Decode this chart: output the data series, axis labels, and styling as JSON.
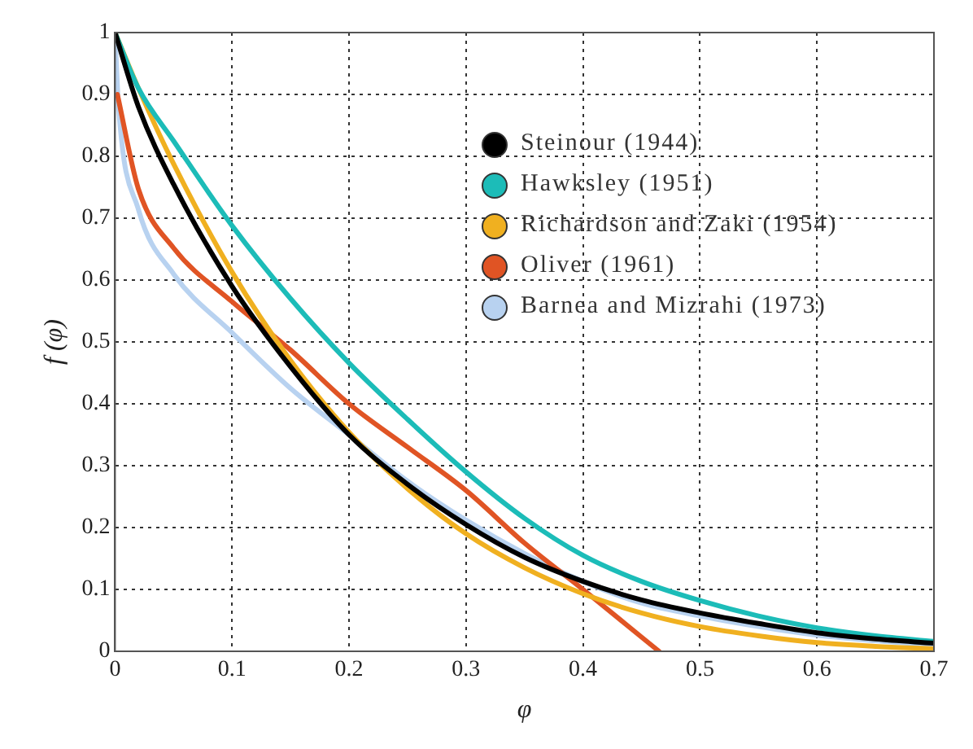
{
  "chart_data": {
    "type": "line",
    "xlabel": "φ",
    "ylabel": "f (φ)",
    "xlim": [
      0,
      0.7
    ],
    "ylim": [
      0,
      1
    ],
    "xticks": [
      0,
      0.1,
      0.2,
      0.3,
      0.4,
      0.5,
      0.6,
      0.7
    ],
    "yticks": [
      0,
      0.1,
      0.2,
      0.3,
      0.4,
      0.5,
      0.6,
      0.7,
      0.8,
      0.9,
      1
    ],
    "grid": true,
    "legend": "top",
    "marker": "none",
    "line_style": "solid",
    "series": [
      {
        "name": "Steinour (1944)",
        "color": "#000000",
        "x": [
          0,
          0.02,
          0.05,
          0.1,
          0.15,
          0.2,
          0.25,
          0.3,
          0.35,
          0.4,
          0.45,
          0.5,
          0.55,
          0.6,
          0.65,
          0.7
        ],
        "values": [
          1,
          0.88,
          0.755,
          0.59,
          0.46,
          0.35,
          0.27,
          0.205,
          0.152,
          0.113,
          0.083,
          0.062,
          0.045,
          0.03,
          0.02,
          0.013
        ]
      },
      {
        "name": "Hawksley (1951)",
        "color": "#1cbcb8",
        "x": [
          0,
          0.02,
          0.05,
          0.1,
          0.15,
          0.2,
          0.25,
          0.3,
          0.35,
          0.4,
          0.45,
          0.5,
          0.55,
          0.6,
          0.65,
          0.7
        ],
        "values": [
          1,
          0.91,
          0.825,
          0.688,
          0.57,
          0.466,
          0.375,
          0.29,
          0.215,
          0.155,
          0.113,
          0.082,
          0.057,
          0.038,
          0.025,
          0.016
        ]
      },
      {
        "name": "Richardson and Zaki (1954)",
        "color": "#f0b020",
        "x": [
          0,
          0.02,
          0.05,
          0.1,
          0.15,
          0.2,
          0.25,
          0.3,
          0.35,
          0.4,
          0.45,
          0.5,
          0.55,
          0.6,
          0.65,
          0.7
        ],
        "values": [
          1,
          0.91,
          0.788,
          0.613,
          0.47,
          0.354,
          0.263,
          0.19,
          0.135,
          0.093,
          0.062,
          0.04,
          0.025,
          0.014,
          0.008,
          0.004
        ]
      },
      {
        "name": "Oliver (1961)",
        "color": "#e05424",
        "x": [
          0.002,
          0.02,
          0.05,
          0.1,
          0.15,
          0.2,
          0.25,
          0.3,
          0.35,
          0.4,
          0.45,
          0.465
        ],
        "values": [
          0.9,
          0.747,
          0.652,
          0.565,
          0.487,
          0.4,
          0.33,
          0.26,
          0.175,
          0.1,
          0.023,
          0
        ]
      },
      {
        "name": "Barnea and Mizrahi (1973)",
        "color": "#b8d2f0",
        "x": [
          0,
          0.003,
          0.02,
          0.05,
          0.1,
          0.15,
          0.2,
          0.25,
          0.3,
          0.35,
          0.4,
          0.45,
          0.5,
          0.55,
          0.6,
          0.65,
          0.7
        ],
        "values": [
          1,
          0.88,
          0.714,
          0.61,
          0.515,
          0.425,
          0.35,
          0.275,
          0.212,
          0.158,
          0.113,
          0.078,
          0.057,
          0.04,
          0.026,
          0.017,
          0.01
        ]
      }
    ]
  }
}
